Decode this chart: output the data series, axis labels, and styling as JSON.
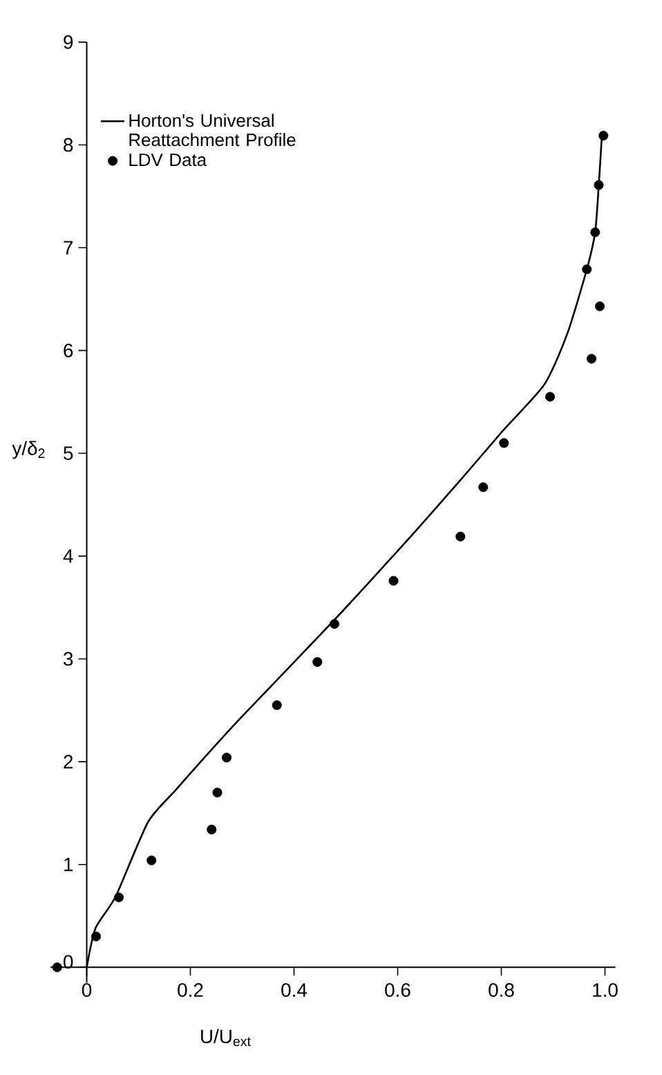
{
  "chart_data": {
    "type": "scatter",
    "xlabel": "U/U$_{ext}$",
    "ylabel": "y/δ$_{2}$",
    "xlim": [
      -0.07,
      1.02
    ],
    "ylim": [
      -0.15,
      9
    ],
    "xticks": [
      0,
      0.2,
      0.4,
      0.6,
      0.8,
      {
        "value": 1,
        "label": "1.0"
      }
    ],
    "yticks": [
      0,
      1,
      2,
      3,
      4,
      5,
      6,
      7,
      8,
      9
    ],
    "legend": "top left",
    "line_style": "solid",
    "series": [
      {
        "name": "Horton's Universal Reattachment Profile",
        "type": "line",
        "marker": "none",
        "color": "#000000",
        "x": [
          0,
          0.017,
          0.056,
          0.118,
          0.171,
          0.22,
          0.296,
          0.478,
          0.589,
          0.634,
          0.723,
          0.803,
          0.883,
          0.927,
          0.965,
          0.981,
          0.988,
          0.994
        ],
        "values": [
          0,
          0.38,
          0.69,
          1.41,
          1.72,
          2.0,
          2.42,
          3.38,
          3.99,
          4.24,
          4.75,
          5.22,
          5.67,
          6.16,
          6.79,
          7.15,
          7.61,
          8.09
        ]
      },
      {
        "name": "LDV Data",
        "marker": "circle",
        "color": "#000000",
        "x": [
          -0.057,
          0.018,
          0.062,
          0.125,
          0.241,
          0.252,
          0.27,
          0.367,
          0.445,
          0.478,
          0.592,
          0.721,
          0.765,
          0.805,
          0.894,
          0.974,
          0.99,
          0.965,
          0.981,
          0.988,
          0.997
        ],
        "values": [
          0.0,
          0.3,
          0.68,
          1.04,
          1.34,
          1.7,
          2.04,
          2.55,
          2.97,
          3.34,
          3.76,
          4.19,
          4.67,
          5.1,
          5.55,
          5.92,
          6.43,
          6.79,
          7.15,
          7.61,
          8.09
        ]
      }
    ]
  }
}
